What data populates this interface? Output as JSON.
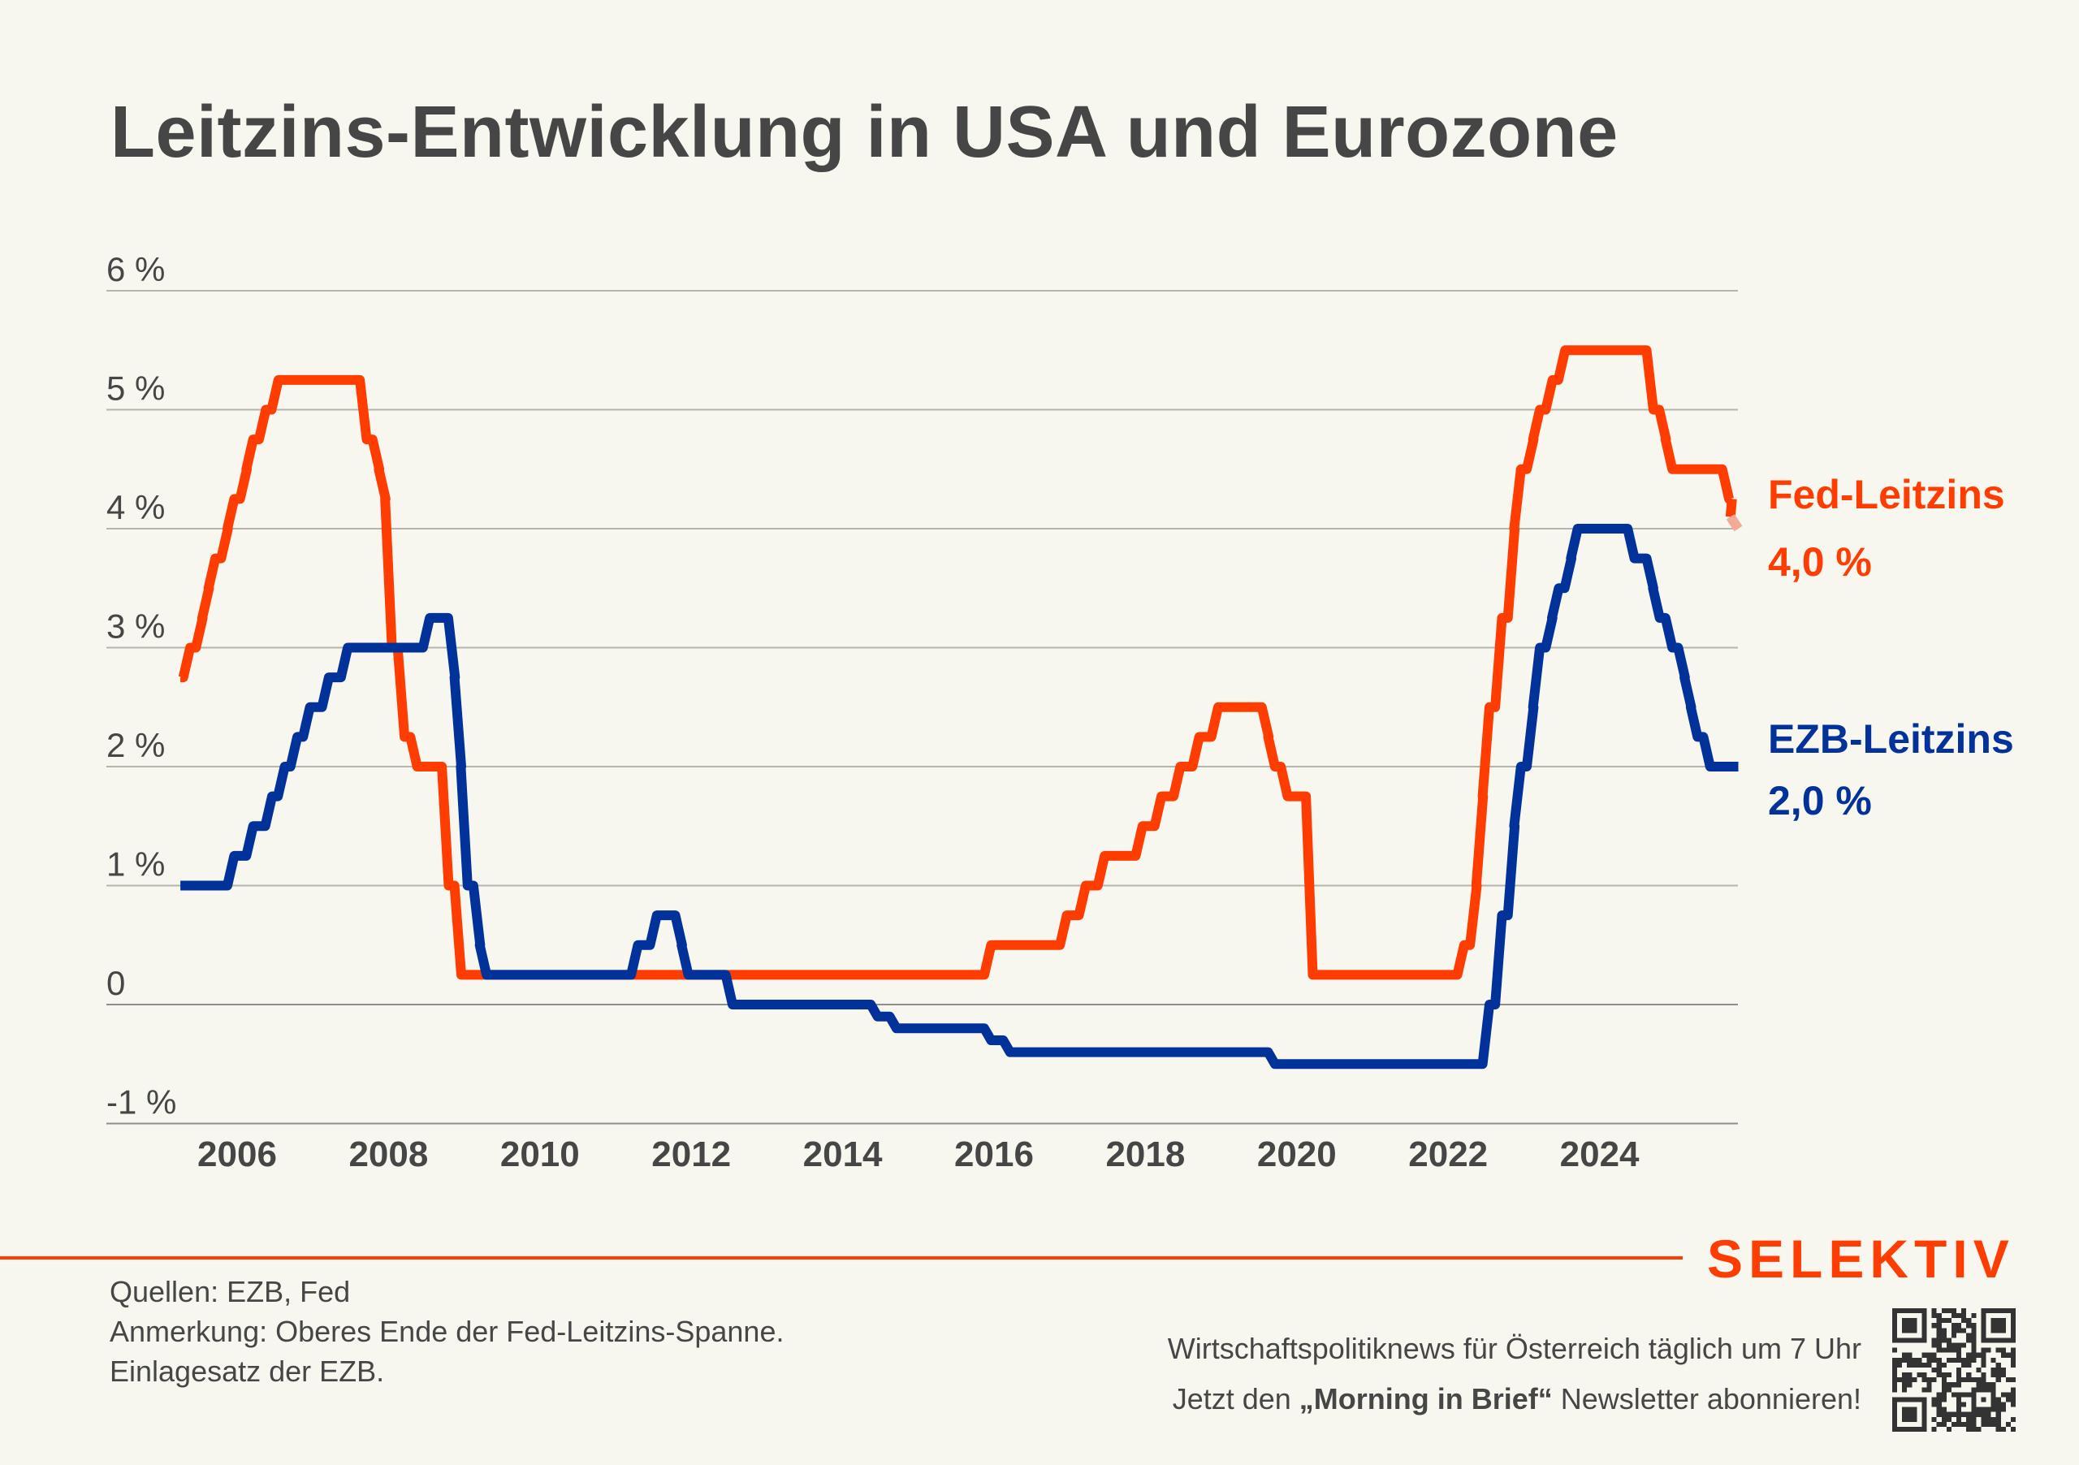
{
  "colors": {
    "background": "#F8F7EF",
    "text": "#464646",
    "fed": "#FF3D00",
    "fed_projected": "#F6AA96",
    "ezb": "#00329A",
    "brand": "#FF3D00",
    "grid": "#B5B5AE"
  },
  "header": {
    "title": "Leitzins-Entwicklung in USA und Eurozone"
  },
  "chart_data": {
    "type": "line",
    "title": "Leitzins-Entwicklung in USA und Eurozone",
    "xlabel": "",
    "ylabel": "",
    "xlim": [
      2005.25,
      2025.9
    ],
    "ylim": [
      -1,
      6
    ],
    "grid": true,
    "x_ticks": [
      "2006",
      "2008",
      "2010",
      "2012",
      "2014",
      "2016",
      "2018",
      "2020",
      "2022",
      "2024"
    ],
    "y_ticks": [
      {
        "value": 6,
        "label": "6 %"
      },
      {
        "value": 5,
        "label": "5 %"
      },
      {
        "value": 4,
        "label": "4 %"
      },
      {
        "value": 3,
        "label": "3 %"
      },
      {
        "value": 2,
        "label": "2 %"
      },
      {
        "value": 1,
        "label": "1 %"
      },
      {
        "value": 0,
        "label": "0"
      },
      {
        "value": -1,
        "label": "-1 %"
      }
    ],
    "legend_placement": "right (direct labels)",
    "series": [
      {
        "name": "Fed-Leitzins",
        "label": "Fed-Leitzins",
        "end_value_label": "4,0 %",
        "color_key": "fed",
        "step_changes": [
          [
            "2005-04",
            2.75
          ],
          [
            "2005-05",
            3.0
          ],
          [
            "2005-07",
            3.25
          ],
          [
            "2005-08",
            3.5
          ],
          [
            "2005-09",
            3.75
          ],
          [
            "2005-11",
            4.0
          ],
          [
            "2005-12",
            4.25
          ],
          [
            "2006-02",
            4.5
          ],
          [
            "2006-03",
            4.75
          ],
          [
            "2006-05",
            5.0
          ],
          [
            "2006-07",
            5.25
          ],
          [
            "2007-09",
            4.75
          ],
          [
            "2007-11",
            4.5
          ],
          [
            "2007-12",
            4.25
          ],
          [
            "2008-01",
            3.0
          ],
          [
            "2008-03",
            2.25
          ],
          [
            "2008-05",
            2.0
          ],
          [
            "2008-10",
            1.0
          ],
          [
            "2008-12",
            0.25
          ],
          [
            "2015-12",
            0.5
          ],
          [
            "2016-12",
            0.75
          ],
          [
            "2017-03",
            1.0
          ],
          [
            "2017-06",
            1.25
          ],
          [
            "2017-12",
            1.5
          ],
          [
            "2018-03",
            1.75
          ],
          [
            "2018-06",
            2.0
          ],
          [
            "2018-09",
            2.25
          ],
          [
            "2018-12",
            2.5
          ],
          [
            "2019-08",
            2.25
          ],
          [
            "2019-09",
            2.0
          ],
          [
            "2019-11",
            1.75
          ],
          [
            "2020-03",
            0.25
          ],
          [
            "2022-03",
            0.5
          ],
          [
            "2022-05",
            1.0
          ],
          [
            "2022-06",
            1.75
          ],
          [
            "2022-07",
            2.5
          ],
          [
            "2022-09",
            3.25
          ],
          [
            "2022-11",
            4.0
          ],
          [
            "2022-12",
            4.5
          ],
          [
            "2023-02",
            4.75
          ],
          [
            "2023-03",
            5.0
          ],
          [
            "2023-05",
            5.25
          ],
          [
            "2023-07",
            5.5
          ],
          [
            "2024-09",
            5.0
          ],
          [
            "2024-11",
            4.75
          ],
          [
            "2024-12",
            4.5
          ],
          [
            "2025-09",
            4.25
          ]
        ],
        "end": "2025-10",
        "projected_segment": {
          "from": [
            "2025-10",
            4.25
          ],
          "to": [
            "2025-11",
            4.0
          ]
        }
      },
      {
        "name": "EZB-Leitzins",
        "label": "EZB-Leitzins",
        "end_value_label": "2,0 %",
        "color_key": "ezb",
        "step_changes": [
          [
            "2005-04",
            1.0
          ],
          [
            "2005-12",
            1.25
          ],
          [
            "2006-03",
            1.5
          ],
          [
            "2006-06",
            1.75
          ],
          [
            "2006-08",
            2.0
          ],
          [
            "2006-10",
            2.25
          ],
          [
            "2006-12",
            2.5
          ],
          [
            "2007-03",
            2.75
          ],
          [
            "2007-06",
            3.0
          ],
          [
            "2008-07",
            3.25
          ],
          [
            "2008-11",
            2.75
          ],
          [
            "2008-12",
            2.0
          ],
          [
            "2009-01",
            1.0
          ],
          [
            "2009-03",
            0.5
          ],
          [
            "2009-04",
            0.25
          ],
          [
            "2011-04",
            0.5
          ],
          [
            "2011-07",
            0.75
          ],
          [
            "2011-11",
            0.5
          ],
          [
            "2011-12",
            0.25
          ],
          [
            "2012-07",
            0.0
          ],
          [
            "2014-06",
            -0.1
          ],
          [
            "2014-09",
            -0.2
          ],
          [
            "2015-12",
            -0.3
          ],
          [
            "2016-03",
            -0.4
          ],
          [
            "2019-09",
            -0.5
          ],
          [
            "2022-07",
            0.0
          ],
          [
            "2022-09",
            0.75
          ],
          [
            "2022-11",
            1.5
          ],
          [
            "2022-12",
            2.0
          ],
          [
            "2023-02",
            2.5
          ],
          [
            "2023-03",
            3.0
          ],
          [
            "2023-05",
            3.25
          ],
          [
            "2023-06",
            3.5
          ],
          [
            "2023-08",
            3.75
          ],
          [
            "2023-09",
            4.0
          ],
          [
            "2024-06",
            3.75
          ],
          [
            "2024-09",
            3.5
          ],
          [
            "2024-10",
            3.25
          ],
          [
            "2024-12",
            3.0
          ],
          [
            "2025-02",
            2.75
          ],
          [
            "2025-03",
            2.5
          ],
          [
            "2025-04",
            2.25
          ],
          [
            "2025-06",
            2.0
          ]
        ],
        "end": "2025-11"
      }
    ]
  },
  "footer": {
    "brand": "SELEKTIV",
    "notes": [
      "Quellen: EZB, Fed",
      "Anmerkung: Oberes Ende der Fed-Leitzins-Spanne.",
      "Einlagesatz der EZB."
    ],
    "promo_line1": "Wirtschaftspolitiknews für Österreich täglich um 7 Uhr",
    "promo_line2_before": "Jetzt den ",
    "promo_line2_bold": "„Morning in Brief“",
    "promo_line2_after": " Newsletter abonnieren!",
    "qr_icon": "qr-code-icon"
  }
}
